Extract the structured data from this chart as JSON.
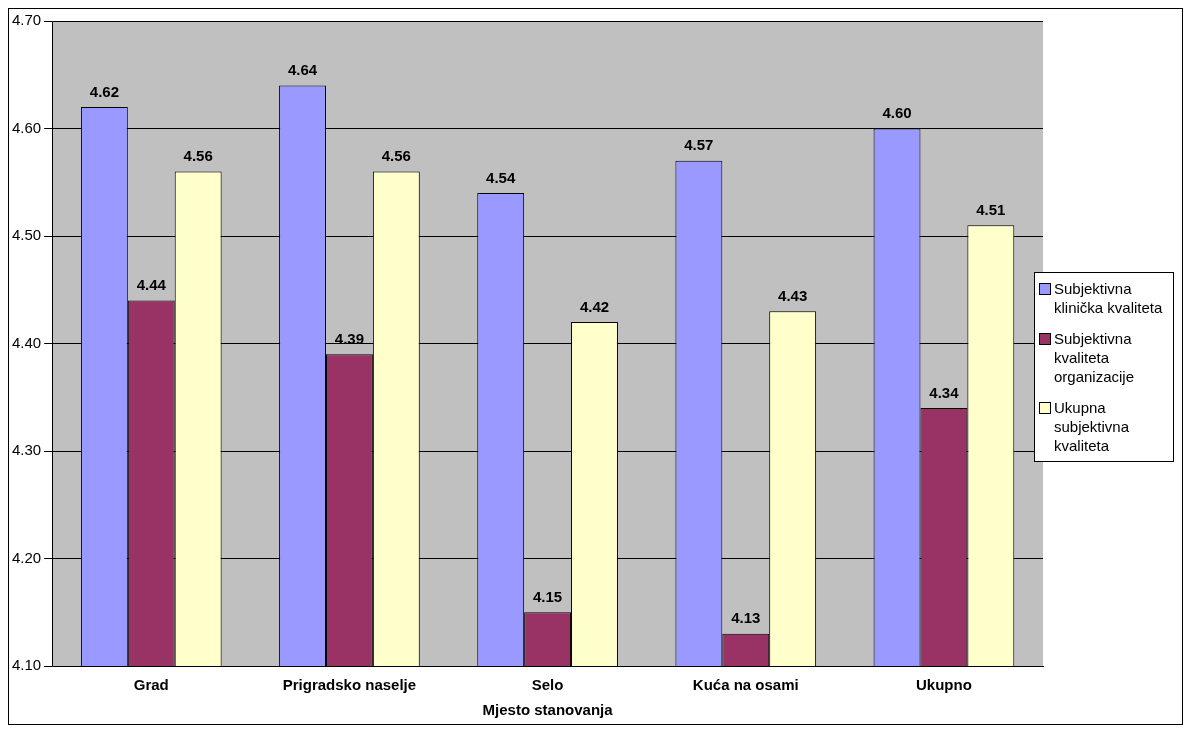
{
  "chart_data": {
    "type": "bar",
    "xlabel": "Mjesto stanovanja",
    "categories": [
      "Grad",
      "Prigradsko naselje",
      "Selo",
      "Kuća na osami",
      "Ukupno"
    ],
    "series": [
      {
        "name": "Subjektivna klinička kvaliteta",
        "color": "#9999ff",
        "values": [
          4.62,
          4.64,
          4.54,
          4.57,
          4.6
        ],
        "value_labels": [
          "4.62",
          "4.64",
          "4.54",
          "4.57",
          "4.60"
        ]
      },
      {
        "name": "Subjektivna kvaliteta organizacije",
        "color": "#993366",
        "values": [
          4.44,
          4.39,
          4.15,
          4.13,
          4.34
        ],
        "value_labels": [
          "4.44",
          "4.39",
          "4.15",
          "4.13",
          "4.34"
        ]
      },
      {
        "name": "Ukupna subjektivna kvaliteta",
        "color": "#ffffcc",
        "values": [
          4.56,
          4.56,
          4.42,
          4.43,
          4.51
        ],
        "value_labels": [
          "4.56",
          "4.56",
          "4.42",
          "4.43",
          "4.51"
        ]
      }
    ],
    "ylim": [
      4.1,
      4.7
    ],
    "yticks": [
      {
        "value": 4.1,
        "label": "4.10"
      },
      {
        "value": 4.2,
        "label": "4.20"
      },
      {
        "value": 4.3,
        "label": "4.30"
      },
      {
        "value": 4.4,
        "label": "4.40"
      },
      {
        "value": 4.5,
        "label": "4.50"
      },
      {
        "value": 4.6,
        "label": "4.60"
      },
      {
        "value": 4.7,
        "label": "4.70"
      }
    ],
    "grid": "y",
    "legend": "right"
  }
}
